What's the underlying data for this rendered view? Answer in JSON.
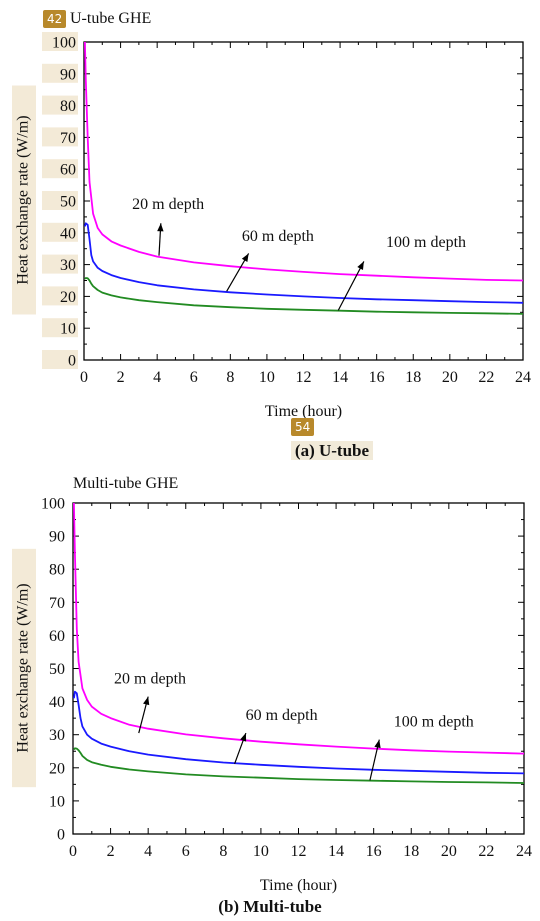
{
  "markers": {
    "top": "42",
    "middle": "54"
  },
  "captions": {
    "a": "(a) U-tube",
    "b": "(b) Multi-tube"
  },
  "chart_data": [
    {
      "type": "line",
      "title": "U-tube GHE",
      "xlabel": "Time (hour)",
      "ylabel": "Heat exchange rate (W/m)",
      "xlim": [
        0,
        24
      ],
      "ylim": [
        0,
        100
      ],
      "xticks": [
        0,
        2,
        4,
        6,
        8,
        10,
        12,
        14,
        16,
        18,
        20,
        22,
        24
      ],
      "yticks": [
        0,
        10,
        20,
        30,
        40,
        50,
        60,
        70,
        80,
        90,
        100
      ],
      "grid": false,
      "series": [
        {
          "name": "20 m depth",
          "color": "#ff00ff",
          "x": [
            0.05,
            0.1,
            0.2,
            0.3,
            0.5,
            0.75,
            1,
            1.5,
            2,
            3,
            4,
            6,
            8,
            10,
            12,
            14,
            16,
            18,
            20,
            22,
            24
          ],
          "y": [
            100,
            88,
            70,
            56,
            46,
            41.5,
            39.5,
            37.3,
            36,
            34,
            32.5,
            30.7,
            29.5,
            28.5,
            27.7,
            27,
            26.5,
            26,
            25.6,
            25.2,
            25
          ]
        },
        {
          "name": "60 m depth",
          "color": "#1a1aff",
          "x": [
            0.05,
            0.1,
            0.2,
            0.3,
            0.4,
            0.5,
            0.75,
            1,
            1.5,
            2,
            3,
            4,
            6,
            8,
            10,
            12,
            14,
            16,
            18,
            20,
            22,
            24
          ],
          "y": [
            42,
            43,
            42.5,
            38,
            33,
            31,
            29,
            28,
            26.7,
            25.8,
            24.5,
            23.5,
            22.2,
            21.3,
            20.6,
            20,
            19.5,
            19.1,
            18.8,
            18.5,
            18.2,
            18
          ]
        },
        {
          "name": "100 m depth",
          "color": "#228b22",
          "x": [
            0.05,
            0.1,
            0.2,
            0.3,
            0.4,
            0.5,
            0.75,
            1,
            1.5,
            2,
            3,
            4,
            6,
            8,
            10,
            12,
            14,
            16,
            18,
            20,
            22,
            24
          ],
          "y": [
            25.5,
            25.8,
            25.7,
            25,
            24,
            23.2,
            22,
            21.2,
            20.3,
            19.7,
            18.8,
            18.2,
            17.2,
            16.6,
            16.1,
            15.8,
            15.5,
            15.2,
            15,
            14.8,
            14.7,
            14.5
          ]
        }
      ],
      "annotations": [
        {
          "text": "20 m depth",
          "x": 4.6,
          "y": 47.5,
          "arrow_from": [
            4.2,
            43
          ],
          "arrow_to": [
            4.1,
            32.8
          ]
        },
        {
          "text": "60 m depth",
          "x": 10.6,
          "y": 37.5,
          "arrow_from": [
            9.0,
            33.5
          ],
          "arrow_to": [
            7.8,
            21.6
          ]
        },
        {
          "text": "100 m depth",
          "x": 18.7,
          "y": 35.5,
          "arrow_from": [
            15.3,
            31.0
          ],
          "arrow_to": [
            13.9,
            15.6
          ]
        }
      ]
    },
    {
      "type": "line",
      "title": "Multi-tube GHE",
      "xlabel": "Time (hour)",
      "ylabel": "Heat exchange rate (W/m)",
      "xlim": [
        0,
        24
      ],
      "ylim": [
        0,
        100
      ],
      "xticks": [
        0,
        2,
        4,
        6,
        8,
        10,
        12,
        14,
        16,
        18,
        20,
        22,
        24
      ],
      "yticks": [
        0,
        10,
        20,
        30,
        40,
        50,
        60,
        70,
        80,
        90,
        100
      ],
      "grid": false,
      "series": [
        {
          "name": "20 m depth",
          "color": "#ff00ff",
          "x": [
            0.05,
            0.1,
            0.2,
            0.3,
            0.5,
            0.75,
            1,
            1.5,
            2,
            3,
            4,
            6,
            8,
            10,
            12,
            14,
            16,
            18,
            20,
            22,
            24
          ],
          "y": [
            100,
            85,
            62,
            52,
            44,
            40.5,
            38.5,
            36.3,
            35,
            33,
            31.8,
            30.1,
            28.9,
            27.9,
            27.1,
            26.4,
            25.8,
            25.3,
            24.9,
            24.6,
            24.3
          ]
        },
        {
          "name": "60 m depth",
          "color": "#1a1aff",
          "x": [
            0.05,
            0.1,
            0.2,
            0.3,
            0.4,
            0.5,
            0.75,
            1,
            1.5,
            2,
            3,
            4,
            6,
            8,
            10,
            12,
            14,
            16,
            18,
            20,
            22,
            24
          ],
          "y": [
            41,
            43,
            42.5,
            39,
            35,
            32.5,
            30,
            28.8,
            27.3,
            26.4,
            25,
            24,
            22.6,
            21.6,
            20.9,
            20.3,
            19.8,
            19.4,
            19.1,
            18.8,
            18.5,
            18.3
          ]
        },
        {
          "name": "100 m depth",
          "color": "#228b22",
          "x": [
            0.05,
            0.1,
            0.2,
            0.3,
            0.4,
            0.5,
            0.75,
            1,
            1.5,
            2,
            3,
            4,
            6,
            8,
            10,
            12,
            14,
            16,
            18,
            20,
            22,
            24
          ],
          "y": [
            25.5,
            25.9,
            25.8,
            25.3,
            24.5,
            23.6,
            22.4,
            21.7,
            20.9,
            20.3,
            19.5,
            18.9,
            18.0,
            17.4,
            17.0,
            16.6,
            16.3,
            16.1,
            15.9,
            15.7,
            15.6,
            15.4
          ]
        }
      ],
      "annotations": [
        {
          "text": "20 m depth",
          "x": 4.1,
          "y": 45.5,
          "arrow_from": [
            4.0,
            41.5
          ],
          "arrow_to": [
            3.5,
            30.5
          ]
        },
        {
          "text": "60 m depth",
          "x": 11.1,
          "y": 34.5,
          "arrow_from": [
            9.2,
            30.5
          ],
          "arrow_to": [
            8.6,
            21.2
          ]
        },
        {
          "text": "100 m depth",
          "x": 19.2,
          "y": 32.5,
          "arrow_from": [
            16.3,
            28.5
          ],
          "arrow_to": [
            15.8,
            16.2
          ]
        }
      ]
    }
  ]
}
